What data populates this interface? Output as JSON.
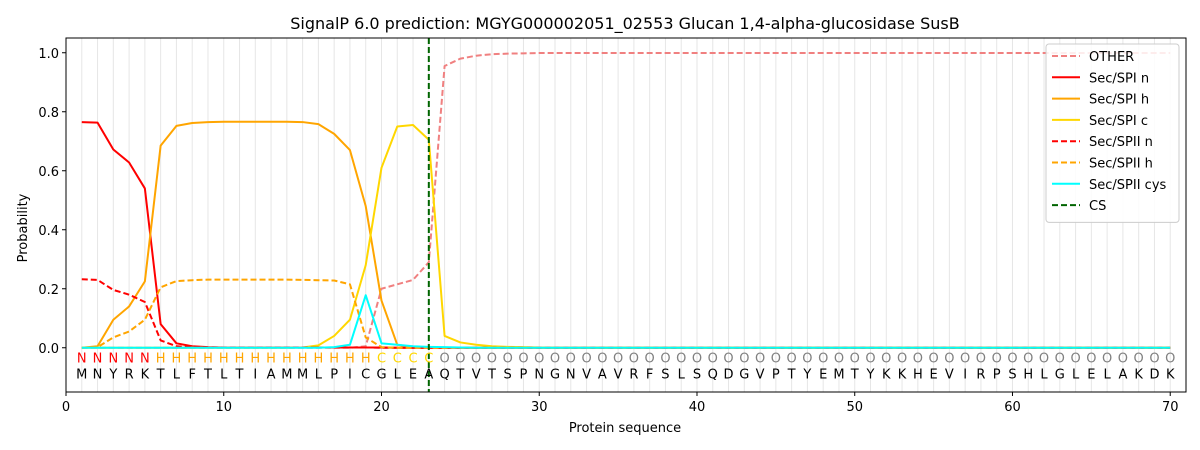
{
  "chart_data": {
    "type": "line",
    "title": "SignalP 6.0 prediction: MGYG000002051_02553 Glucan 1,4-alpha-glucosidase SusB",
    "xlabel": "Protein sequence",
    "ylabel": "Probability",
    "xlim": [
      0,
      71
    ],
    "ylim": [
      -0.15,
      1.05
    ],
    "xticks": [
      0,
      10,
      20,
      30,
      40,
      50,
      60,
      70
    ],
    "yticks": [
      0.0,
      0.2,
      0.4,
      0.6,
      0.8,
      1.0
    ],
    "ytick_labels": [
      "0.0",
      "0.2",
      "0.4",
      "0.6",
      "0.8",
      "1.0"
    ],
    "vertical_grid_every_residue": true,
    "legend_position": "upper right",
    "sequence": [
      "M",
      "N",
      "Y",
      "R",
      "K",
      "T",
      "L",
      "F",
      "T",
      "L",
      "T",
      "I",
      "A",
      "M",
      "M",
      "L",
      "P",
      "I",
      "C",
      "G",
      "L",
      "E",
      "A",
      "Q",
      "T",
      "V",
      "T",
      "S",
      "P",
      "N",
      "G",
      "N",
      "V",
      "A",
      "V",
      "R",
      "F",
      "S",
      "L",
      "S",
      "Q",
      "D",
      "G",
      "V",
      "P",
      "T",
      "Y",
      "E",
      "M",
      "T",
      "Y",
      "K",
      "K",
      "H",
      "E",
      "V",
      "I",
      "R",
      "P",
      "S",
      "H",
      "L",
      "G",
      "L",
      "E",
      "L",
      "A",
      "K",
      "D",
      "K"
    ],
    "labels": [
      "N",
      "N",
      "N",
      "N",
      "N",
      "H",
      "H",
      "H",
      "H",
      "H",
      "H",
      "H",
      "H",
      "H",
      "H",
      "H",
      "H",
      "H",
      "H",
      "C",
      "C",
      "C",
      "C",
      "O",
      "O",
      "O",
      "O",
      "O",
      "O",
      "O",
      "O",
      "O",
      "O",
      "O",
      "O",
      "O",
      "O",
      "O",
      "O",
      "O",
      "O",
      "O",
      "O",
      "O",
      "O",
      "O",
      "O",
      "O",
      "O",
      "O",
      "O",
      "O",
      "O",
      "O",
      "O",
      "O",
      "O",
      "O",
      "O",
      "O",
      "O",
      "O",
      "O",
      "O",
      "O",
      "O",
      "O",
      "O",
      "O",
      "O"
    ],
    "label_colors": {
      "N": "#ff0000",
      "H": "#ffa500",
      "C": "#ffd700",
      "O": "#808080"
    },
    "cleavage_site": 23,
    "series": [
      {
        "name": "OTHER",
        "color": "#f08080",
        "dash": "dashed",
        "values": [
          0,
          0,
          0,
          0,
          0,
          0,
          0,
          0,
          0,
          0,
          0,
          0,
          0,
          0,
          0,
          0,
          0,
          0,
          0.005,
          0.2,
          0.215,
          0.23,
          0.29,
          0.955,
          0.98,
          0.99,
          0.995,
          0.997,
          0.998,
          0.999,
          0.999,
          0.999,
          0.999,
          0.999,
          0.999,
          0.999,
          0.999,
          0.999,
          0.999,
          0.999,
          0.999,
          0.999,
          0.999,
          0.999,
          0.999,
          0.999,
          0.999,
          0.999,
          0.999,
          0.999,
          0.999,
          0.999,
          0.999,
          0.999,
          0.999,
          0.999,
          0.999,
          0.999,
          0.999,
          0.999,
          0.999,
          0.999,
          0.999,
          0.999,
          0.999,
          0.999,
          0.999,
          0.999,
          0.999,
          0.999
        ]
      },
      {
        "name": "Sec/SPI n",
        "color": "#ff0000",
        "dash": "solid",
        "values": [
          0.765,
          0.763,
          0.672,
          0.628,
          0.54,
          0.08,
          0.015,
          0.005,
          0.002,
          0.001,
          0.001,
          0.001,
          0.001,
          0.001,
          0.001,
          0.001,
          0.001,
          0.001,
          0.001,
          0.001,
          0,
          0,
          0,
          0,
          0,
          0,
          0,
          0,
          0,
          0,
          0,
          0,
          0,
          0,
          0,
          0,
          0,
          0,
          0,
          0,
          0,
          0,
          0,
          0,
          0,
          0,
          0,
          0,
          0,
          0,
          0,
          0,
          0,
          0,
          0,
          0,
          0,
          0,
          0,
          0,
          0,
          0,
          0,
          0,
          0,
          0,
          0,
          0,
          0,
          0
        ]
      },
      {
        "name": "Sec/SPI h",
        "color": "#ffa500",
        "dash": "solid",
        "values": [
          0,
          0.005,
          0.095,
          0.14,
          0.225,
          0.685,
          0.752,
          0.762,
          0.765,
          0.766,
          0.766,
          0.766,
          0.766,
          0.766,
          0.765,
          0.758,
          0.725,
          0.67,
          0.48,
          0.16,
          0.01,
          0.002,
          0.001,
          0,
          0,
          0,
          0,
          0,
          0,
          0,
          0,
          0,
          0,
          0,
          0,
          0,
          0,
          0,
          0,
          0,
          0,
          0,
          0,
          0,
          0,
          0,
          0,
          0,
          0,
          0,
          0,
          0,
          0,
          0,
          0,
          0,
          0,
          0,
          0,
          0,
          0,
          0,
          0,
          0,
          0,
          0,
          0,
          0,
          0,
          0
        ]
      },
      {
        "name": "Sec/SPI c",
        "color": "#ffd700",
        "dash": "solid",
        "values": [
          0,
          0,
          0,
          0,
          0,
          0,
          0,
          0,
          0,
          0,
          0,
          0,
          0,
          0,
          0.001,
          0.008,
          0.04,
          0.095,
          0.28,
          0.61,
          0.75,
          0.755,
          0.705,
          0.04,
          0.018,
          0.01,
          0.005,
          0.003,
          0.002,
          0.001,
          0,
          0,
          0,
          0,
          0,
          0,
          0,
          0,
          0,
          0,
          0,
          0,
          0,
          0,
          0,
          0,
          0,
          0,
          0,
          0,
          0,
          0,
          0,
          0,
          0,
          0,
          0,
          0,
          0,
          0,
          0,
          0,
          0,
          0,
          0,
          0,
          0,
          0,
          0,
          0
        ]
      },
      {
        "name": "Sec/SPII n",
        "color": "#ff0000",
        "dash": "dashed",
        "values": [
          0.232,
          0.23,
          0.196,
          0.18,
          0.155,
          0.025,
          0.005,
          0.002,
          0.001,
          0.001,
          0.001,
          0.001,
          0.001,
          0.001,
          0.001,
          0.001,
          0.001,
          0.001,
          0.001,
          0,
          0,
          0,
          0,
          0,
          0,
          0,
          0,
          0,
          0,
          0,
          0,
          0,
          0,
          0,
          0,
          0,
          0,
          0,
          0,
          0,
          0,
          0,
          0,
          0,
          0,
          0,
          0,
          0,
          0,
          0,
          0,
          0,
          0,
          0,
          0,
          0,
          0,
          0,
          0,
          0,
          0,
          0,
          0,
          0,
          0,
          0,
          0,
          0,
          0,
          0
        ]
      },
      {
        "name": "Sec/SPII h",
        "color": "#ffa500",
        "dash": "dashed",
        "values": [
          0,
          0.002,
          0.035,
          0.055,
          0.095,
          0.205,
          0.226,
          0.229,
          0.231,
          0.231,
          0.231,
          0.231,
          0.231,
          0.231,
          0.23,
          0.229,
          0.228,
          0.215,
          0.035,
          0.002,
          0,
          0,
          0,
          0,
          0,
          0,
          0,
          0,
          0,
          0,
          0,
          0,
          0,
          0,
          0,
          0,
          0,
          0,
          0,
          0,
          0,
          0,
          0,
          0,
          0,
          0,
          0,
          0,
          0,
          0,
          0,
          0,
          0,
          0,
          0,
          0,
          0,
          0,
          0,
          0,
          0,
          0,
          0,
          0,
          0,
          0,
          0,
          0,
          0,
          0
        ]
      },
      {
        "name": "Sec/SPII cys",
        "color": "#00ffff",
        "dash": "solid",
        "values": [
          0,
          0,
          0,
          0,
          0,
          0,
          0,
          0,
          0,
          0,
          0,
          0,
          0,
          0,
          0,
          0,
          0.002,
          0.01,
          0.178,
          0.015,
          0.01,
          0.005,
          0.003,
          0.002,
          0.001,
          0,
          0,
          0,
          0,
          0,
          0,
          0,
          0,
          0,
          0,
          0,
          0,
          0,
          0,
          0,
          0,
          0,
          0,
          0,
          0,
          0,
          0,
          0,
          0,
          0,
          0,
          0,
          0,
          0,
          0,
          0,
          0,
          0,
          0,
          0,
          0,
          0,
          0,
          0,
          0,
          0,
          0,
          0,
          0,
          0
        ]
      },
      {
        "name": "CS",
        "color": "#006400",
        "dash": "dashed",
        "kind": "vline",
        "x": 23
      }
    ]
  }
}
